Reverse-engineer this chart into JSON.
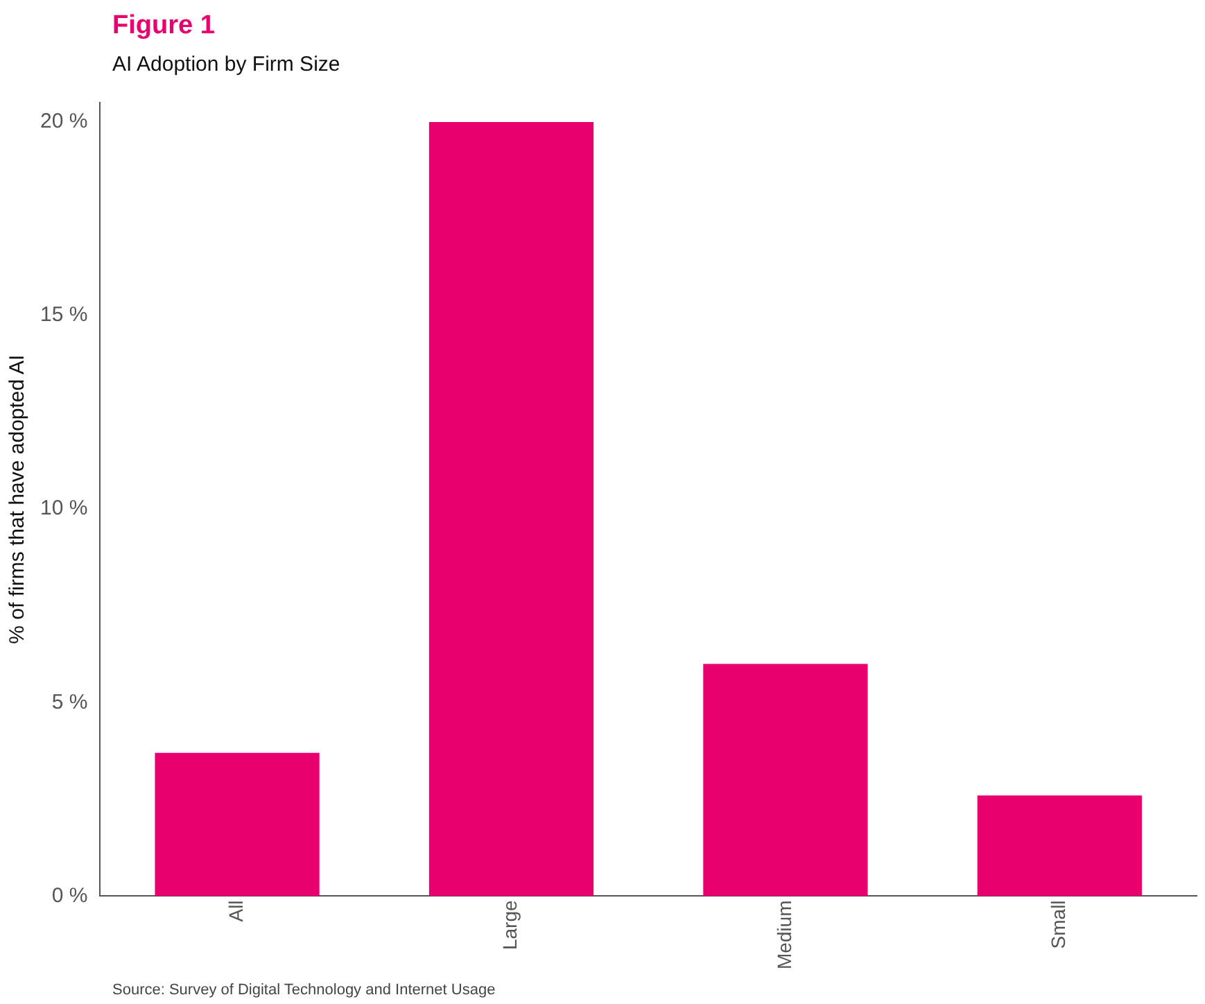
{
  "chart_data": {
    "type": "bar",
    "title": "Figure 1",
    "subtitle": "AI Adoption by Firm Size",
    "ylabel": "% of firms that have adopted AI",
    "categories": [
      "All",
      "Large",
      "Medium",
      "Small"
    ],
    "values": [
      3.7,
      20.0,
      6.0,
      2.6
    ],
    "color": "#e8006f",
    "ylim": [
      0,
      20.5
    ],
    "yticks": [
      {
        "value": 0,
        "label": "0 %"
      },
      {
        "value": 5,
        "label": "5 %"
      },
      {
        "value": 10,
        "label": "10 %"
      },
      {
        "value": 15,
        "label": "15 %"
      },
      {
        "value": 20,
        "label": "20 %"
      }
    ],
    "grid": false,
    "annotations": [
      "Source: Survey of Digital Technology and Internet Usage"
    ]
  }
}
